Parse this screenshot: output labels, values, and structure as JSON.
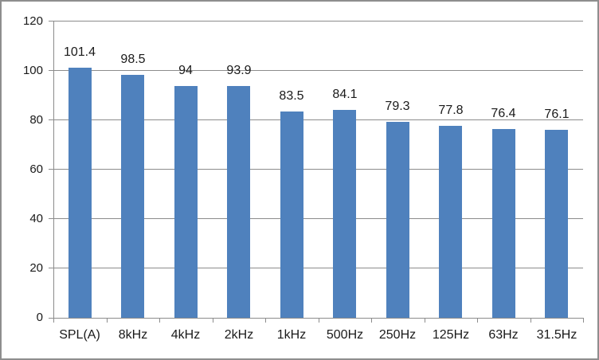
{
  "chart_data": {
    "type": "bar",
    "title": "",
    "xlabel": "",
    "ylabel": "",
    "categories": [
      "SPL(A)",
      "8kHz",
      "4kHz",
      "2kHz",
      "1kHz",
      "500Hz",
      "250Hz",
      "125Hz",
      "63Hz",
      "31.5Hz"
    ],
    "values": [
      101.4,
      98.5,
      94,
      93.9,
      83.5,
      84.1,
      79.3,
      77.8,
      76.4,
      76.1
    ],
    "data_labels": [
      "101.4",
      "98.5",
      "94",
      "93.9",
      "83.5",
      "84.1",
      "79.3",
      "77.8",
      "76.4",
      "76.1"
    ],
    "ylim": [
      0,
      120
    ],
    "yticks": [
      0,
      20,
      40,
      60,
      80,
      100,
      120
    ],
    "grid": true,
    "legend": false,
    "colors": {
      "bar_fill": "#4F81BD",
      "gridline": "#8C8C8C",
      "axis_line": "#8C8C8C",
      "text": "#1A1A1A",
      "frame_border": "#8E8E8E",
      "background": "#FFFFFF"
    }
  }
}
